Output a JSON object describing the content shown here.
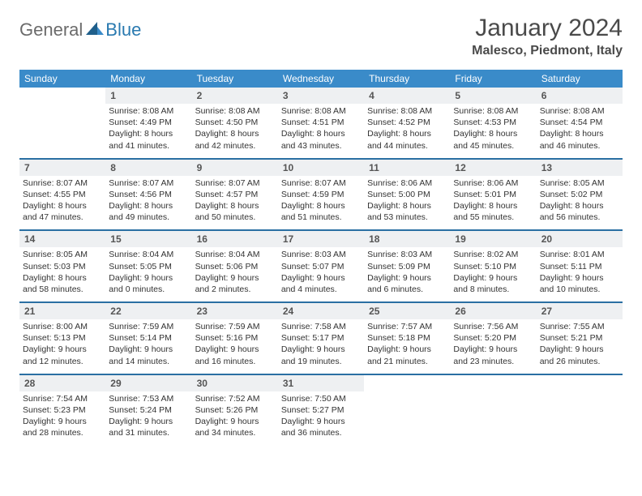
{
  "logo": {
    "part1": "General",
    "part2": "Blue"
  },
  "title": "January 2024",
  "location": "Malesco, Piedmont, Italy",
  "colors": {
    "header_bg": "#3a8bc9",
    "header_text": "#ffffff",
    "sep": "#2a6fa3",
    "daynum_bg": "#eef0f2",
    "text": "#333333",
    "logo_gray": "#6b6b6b",
    "logo_blue": "#2a7ab0"
  },
  "days_of_week": [
    "Sunday",
    "Monday",
    "Tuesday",
    "Wednesday",
    "Thursday",
    "Friday",
    "Saturday"
  ],
  "weeks": [
    [
      null,
      {
        "n": "1",
        "sr": "Sunrise: 8:08 AM",
        "ss": "Sunset: 4:49 PM",
        "d1": "Daylight: 8 hours",
        "d2": "and 41 minutes."
      },
      {
        "n": "2",
        "sr": "Sunrise: 8:08 AM",
        "ss": "Sunset: 4:50 PM",
        "d1": "Daylight: 8 hours",
        "d2": "and 42 minutes."
      },
      {
        "n": "3",
        "sr": "Sunrise: 8:08 AM",
        "ss": "Sunset: 4:51 PM",
        "d1": "Daylight: 8 hours",
        "d2": "and 43 minutes."
      },
      {
        "n": "4",
        "sr": "Sunrise: 8:08 AM",
        "ss": "Sunset: 4:52 PM",
        "d1": "Daylight: 8 hours",
        "d2": "and 44 minutes."
      },
      {
        "n": "5",
        "sr": "Sunrise: 8:08 AM",
        "ss": "Sunset: 4:53 PM",
        "d1": "Daylight: 8 hours",
        "d2": "and 45 minutes."
      },
      {
        "n": "6",
        "sr": "Sunrise: 8:08 AM",
        "ss": "Sunset: 4:54 PM",
        "d1": "Daylight: 8 hours",
        "d2": "and 46 minutes."
      }
    ],
    [
      {
        "n": "7",
        "sr": "Sunrise: 8:07 AM",
        "ss": "Sunset: 4:55 PM",
        "d1": "Daylight: 8 hours",
        "d2": "and 47 minutes."
      },
      {
        "n": "8",
        "sr": "Sunrise: 8:07 AM",
        "ss": "Sunset: 4:56 PM",
        "d1": "Daylight: 8 hours",
        "d2": "and 49 minutes."
      },
      {
        "n": "9",
        "sr": "Sunrise: 8:07 AM",
        "ss": "Sunset: 4:57 PM",
        "d1": "Daylight: 8 hours",
        "d2": "and 50 minutes."
      },
      {
        "n": "10",
        "sr": "Sunrise: 8:07 AM",
        "ss": "Sunset: 4:59 PM",
        "d1": "Daylight: 8 hours",
        "d2": "and 51 minutes."
      },
      {
        "n": "11",
        "sr": "Sunrise: 8:06 AM",
        "ss": "Sunset: 5:00 PM",
        "d1": "Daylight: 8 hours",
        "d2": "and 53 minutes."
      },
      {
        "n": "12",
        "sr": "Sunrise: 8:06 AM",
        "ss": "Sunset: 5:01 PM",
        "d1": "Daylight: 8 hours",
        "d2": "and 55 minutes."
      },
      {
        "n": "13",
        "sr": "Sunrise: 8:05 AM",
        "ss": "Sunset: 5:02 PM",
        "d1": "Daylight: 8 hours",
        "d2": "and 56 minutes."
      }
    ],
    [
      {
        "n": "14",
        "sr": "Sunrise: 8:05 AM",
        "ss": "Sunset: 5:03 PM",
        "d1": "Daylight: 8 hours",
        "d2": "and 58 minutes."
      },
      {
        "n": "15",
        "sr": "Sunrise: 8:04 AM",
        "ss": "Sunset: 5:05 PM",
        "d1": "Daylight: 9 hours",
        "d2": "and 0 minutes."
      },
      {
        "n": "16",
        "sr": "Sunrise: 8:04 AM",
        "ss": "Sunset: 5:06 PM",
        "d1": "Daylight: 9 hours",
        "d2": "and 2 minutes."
      },
      {
        "n": "17",
        "sr": "Sunrise: 8:03 AM",
        "ss": "Sunset: 5:07 PM",
        "d1": "Daylight: 9 hours",
        "d2": "and 4 minutes."
      },
      {
        "n": "18",
        "sr": "Sunrise: 8:03 AM",
        "ss": "Sunset: 5:09 PM",
        "d1": "Daylight: 9 hours",
        "d2": "and 6 minutes."
      },
      {
        "n": "19",
        "sr": "Sunrise: 8:02 AM",
        "ss": "Sunset: 5:10 PM",
        "d1": "Daylight: 9 hours",
        "d2": "and 8 minutes."
      },
      {
        "n": "20",
        "sr": "Sunrise: 8:01 AM",
        "ss": "Sunset: 5:11 PM",
        "d1": "Daylight: 9 hours",
        "d2": "and 10 minutes."
      }
    ],
    [
      {
        "n": "21",
        "sr": "Sunrise: 8:00 AM",
        "ss": "Sunset: 5:13 PM",
        "d1": "Daylight: 9 hours",
        "d2": "and 12 minutes."
      },
      {
        "n": "22",
        "sr": "Sunrise: 7:59 AM",
        "ss": "Sunset: 5:14 PM",
        "d1": "Daylight: 9 hours",
        "d2": "and 14 minutes."
      },
      {
        "n": "23",
        "sr": "Sunrise: 7:59 AM",
        "ss": "Sunset: 5:16 PM",
        "d1": "Daylight: 9 hours",
        "d2": "and 16 minutes."
      },
      {
        "n": "24",
        "sr": "Sunrise: 7:58 AM",
        "ss": "Sunset: 5:17 PM",
        "d1": "Daylight: 9 hours",
        "d2": "and 19 minutes."
      },
      {
        "n": "25",
        "sr": "Sunrise: 7:57 AM",
        "ss": "Sunset: 5:18 PM",
        "d1": "Daylight: 9 hours",
        "d2": "and 21 minutes."
      },
      {
        "n": "26",
        "sr": "Sunrise: 7:56 AM",
        "ss": "Sunset: 5:20 PM",
        "d1": "Daylight: 9 hours",
        "d2": "and 23 minutes."
      },
      {
        "n": "27",
        "sr": "Sunrise: 7:55 AM",
        "ss": "Sunset: 5:21 PM",
        "d1": "Daylight: 9 hours",
        "d2": "and 26 minutes."
      }
    ],
    [
      {
        "n": "28",
        "sr": "Sunrise: 7:54 AM",
        "ss": "Sunset: 5:23 PM",
        "d1": "Daylight: 9 hours",
        "d2": "and 28 minutes."
      },
      {
        "n": "29",
        "sr": "Sunrise: 7:53 AM",
        "ss": "Sunset: 5:24 PM",
        "d1": "Daylight: 9 hours",
        "d2": "and 31 minutes."
      },
      {
        "n": "30",
        "sr": "Sunrise: 7:52 AM",
        "ss": "Sunset: 5:26 PM",
        "d1": "Daylight: 9 hours",
        "d2": "and 34 minutes."
      },
      {
        "n": "31",
        "sr": "Sunrise: 7:50 AM",
        "ss": "Sunset: 5:27 PM",
        "d1": "Daylight: 9 hours",
        "d2": "and 36 minutes."
      },
      null,
      null,
      null
    ]
  ]
}
